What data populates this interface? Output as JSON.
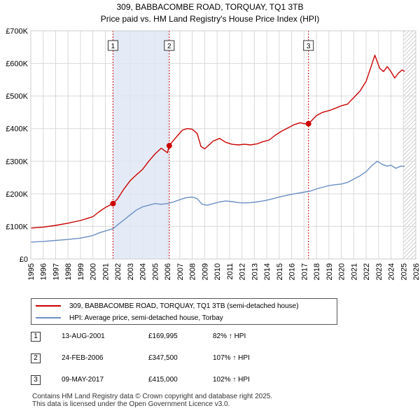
{
  "title_line1": "309, BABBACOMBE ROAD, TORQUAY, TQ1 3TB",
  "title_line2": "Price paid vs. HM Land Registry's House Price Index (HPI)",
  "legend": {
    "property_label": "309, BABBACOMBE ROAD, TORQUAY, TQ1 3TB (semi-detached house)",
    "hpi_label": "HPI: Average price, semi-detached house, Torbay"
  },
  "colors": {
    "property": "#cc0000",
    "hpi": "#6b8fc4",
    "shade": "#dde6f4",
    "grid": "#d9d9d9",
    "marker_line": "#cc0000"
  },
  "sales": [
    {
      "num": "1",
      "date": "13-AUG-2001",
      "price": "£169,995",
      "hpi": "82% ↑ HPI"
    },
    {
      "num": "2",
      "date": "24-FEB-2006",
      "price": "£347,500",
      "hpi": "107% ↑ HPI"
    },
    {
      "num": "3",
      "date": "09-MAY-2017",
      "price": "£415,000",
      "hpi": "102% ↑ HPI"
    }
  ],
  "footer": {
    "line1": "Contains HM Land Registry data © Crown copyright and database right 2025.",
    "line2": "This data is licensed under the Open Government Licence v3.0."
  },
  "chart_data": {
    "type": "line",
    "xlim": [
      1995,
      2026
    ],
    "ylim": [
      0,
      700000
    ],
    "ytick_values": [
      0,
      100000,
      200000,
      300000,
      400000,
      500000,
      600000,
      700000
    ],
    "ytick_labels": [
      "£0",
      "£100K",
      "£200K",
      "£300K",
      "£400K",
      "£500K",
      "£600K",
      "£700K"
    ],
    "xtick_values": [
      1995,
      1996,
      1997,
      1998,
      1999,
      2000,
      2001,
      2002,
      2003,
      2004,
      2005,
      2006,
      2007,
      2008,
      2009,
      2010,
      2011,
      2012,
      2013,
      2014,
      2015,
      2016,
      2017,
      2018,
      2019,
      2020,
      2021,
      2022,
      2023,
      2024,
      2025,
      2026
    ],
    "xtick_labels": [
      "1995",
      "1996",
      "1997",
      "1998",
      "1999",
      "2000",
      "2001",
      "2002",
      "2003",
      "2004",
      "2005",
      "2006",
      "2007",
      "2008",
      "2009",
      "2010",
      "2011",
      "2012",
      "2013",
      "2014",
      "2015",
      "2016",
      "2017",
      "2018",
      "2019",
      "2020",
      "2021",
      "2022",
      "2023",
      "2024",
      "2025",
      "2026"
    ],
    "sale_markers": [
      {
        "label": "1",
        "x": 2001.62,
        "y": 169995
      },
      {
        "label": "2",
        "x": 2006.15,
        "y": 347500
      },
      {
        "label": "3",
        "x": 2017.36,
        "y": 415000
      }
    ],
    "shaded_ranges": [
      [
        2001.62,
        2006.15
      ],
      [
        2017.36,
        2017.36
      ]
    ],
    "hatched_from": 2025.0,
    "series": [
      {
        "name": "309, BABBACOMBE ROAD, TORQUAY, TQ1 3TB (semi-detached house)",
        "x": [
          1995.0,
          1996.0,
          1997.0,
          1998.0,
          1999.0,
          2000.0,
          2000.5,
          2001.0,
          2001.62,
          2002.0,
          2002.5,
          2003.0,
          2003.5,
          2004.0,
          2004.5,
          2005.0,
          2005.5,
          2006.0,
          2006.15,
          2006.4,
          2006.8,
          2007.2,
          2007.6,
          2008.0,
          2008.4,
          2008.7,
          2009.0,
          2009.3,
          2009.7,
          2010.2,
          2010.7,
          2011.2,
          2011.7,
          2012.2,
          2012.7,
          2013.2,
          2013.7,
          2014.2,
          2014.7,
          2015.2,
          2015.7,
          2016.2,
          2016.7,
          2017.0,
          2017.36,
          2017.7,
          2018.0,
          2018.5,
          2019.0,
          2019.5,
          2020.0,
          2020.5,
          2021.0,
          2021.5,
          2022.0,
          2022.4,
          2022.7,
          2022.9,
          2023.1,
          2023.4,
          2023.7,
          2024.0,
          2024.3,
          2024.6,
          2024.9,
          2025.1
        ],
        "y": [
          95000,
          98000,
          103000,
          110000,
          118000,
          130000,
          145000,
          158000,
          169995,
          185000,
          215000,
          240000,
          258000,
          275000,
          300000,
          322000,
          340000,
          326000,
          347500,
          360000,
          378000,
          395000,
          400000,
          398000,
          385000,
          345000,
          338000,
          348000,
          362000,
          370000,
          358000,
          352000,
          350000,
          352000,
          350000,
          353000,
          360000,
          365000,
          380000,
          392000,
          402000,
          412000,
          418000,
          415000,
          415000,
          428000,
          440000,
          450000,
          455000,
          462000,
          470000,
          475000,
          495000,
          515000,
          545000,
          590000,
          625000,
          605000,
          585000,
          575000,
          590000,
          575000,
          555000,
          570000,
          580000,
          575000
        ]
      },
      {
        "name": "HPI: Average price, semi-detached house, Torbay",
        "x": [
          1995.0,
          1996.0,
          1997.0,
          1998.0,
          1999.0,
          2000.0,
          2000.5,
          2001.0,
          2001.62,
          2002.0,
          2002.5,
          2003.0,
          2003.5,
          2004.0,
          2004.5,
          2005.0,
          2005.5,
          2006.0,
          2006.5,
          2007.0,
          2007.5,
          2008.0,
          2008.4,
          2008.8,
          2009.2,
          2009.7,
          2010.2,
          2010.7,
          2011.2,
          2011.7,
          2012.2,
          2012.7,
          2013.2,
          2013.7,
          2014.2,
          2014.7,
          2015.2,
          2015.7,
          2016.2,
          2016.7,
          2017.0,
          2017.5,
          2018.0,
          2018.5,
          2019.0,
          2019.5,
          2020.0,
          2020.5,
          2021.0,
          2021.5,
          2022.0,
          2022.5,
          2022.9,
          2023.3,
          2023.7,
          2024.0,
          2024.4,
          2024.8,
          2025.1
        ],
        "y": [
          52000,
          54000,
          57000,
          60000,
          64000,
          72000,
          80000,
          86000,
          93000,
          105000,
          120000,
          135000,
          150000,
          160000,
          165000,
          170000,
          168000,
          170000,
          175000,
          182000,
          188000,
          190000,
          185000,
          168000,
          165000,
          170000,
          175000,
          178000,
          176000,
          173000,
          172000,
          173000,
          175000,
          178000,
          182000,
          187000,
          192000,
          196000,
          200000,
          203000,
          205000,
          208000,
          215000,
          220000,
          225000,
          228000,
          230000,
          235000,
          245000,
          255000,
          268000,
          288000,
          300000,
          290000,
          285000,
          288000,
          278000,
          285000,
          284000
        ]
      }
    ]
  }
}
